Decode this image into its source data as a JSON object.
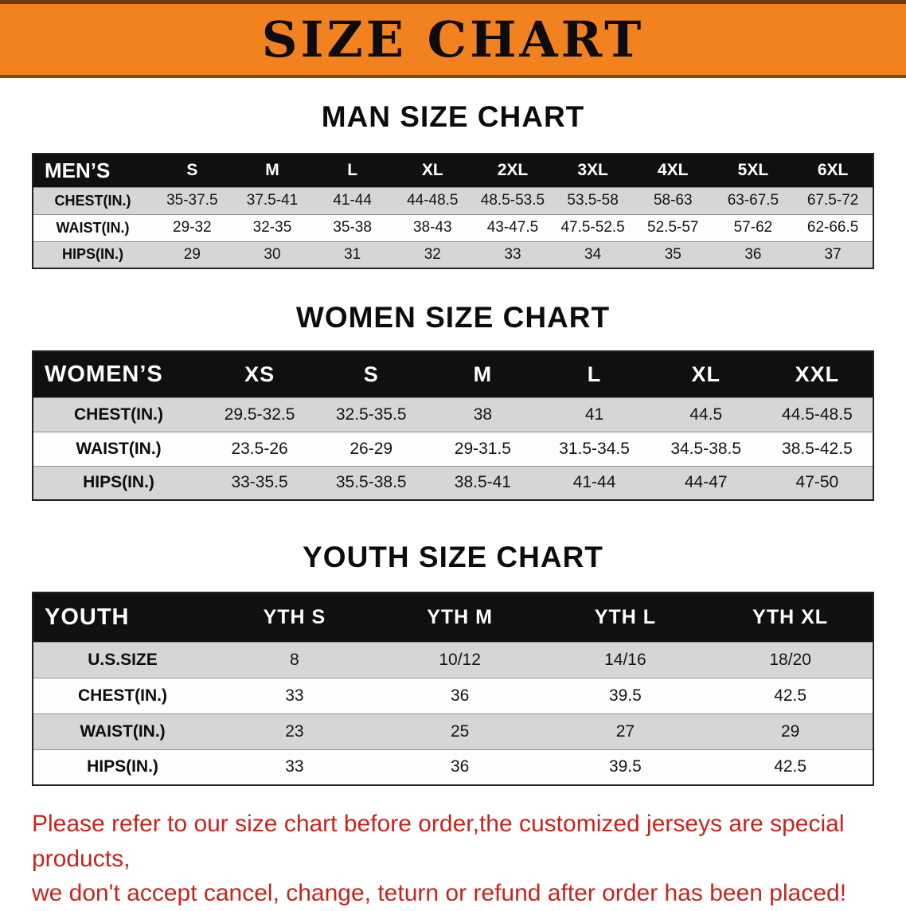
{
  "banner": {
    "title": "SIZE CHART",
    "bg_color": "#f2811f",
    "text_color": "#0c0c0c"
  },
  "sections": [
    {
      "heading": "MAN SIZE CHART",
      "table": {
        "header": [
          "MEN’S",
          "S",
          "M",
          "L",
          "XL",
          "2XL",
          "3XL",
          "4XL",
          "5XL",
          "6XL"
        ],
        "rows": [
          {
            "label": "CHEST(IN.)",
            "values": [
              "35-37.5",
              "37.5-41",
              "41-44",
              "44-48.5",
              "48.5-53.5",
              "53.5-58",
              "58-63",
              "63-67.5",
              "67.5-72"
            ]
          },
          {
            "label": "WAIST(IN.)",
            "values": [
              "29-32",
              "32-35",
              "35-38",
              "38-43",
              "43-47.5",
              "47.5-52.5",
              "52.5-57",
              "57-62",
              "62-66.5"
            ]
          },
          {
            "label": "HIPS(IN.)",
            "values": [
              "29",
              "30",
              "31",
              "32",
              "33",
              "34",
              "35",
              "36",
              "37"
            ]
          }
        ]
      }
    },
    {
      "heading": "WOMEN SIZE CHART",
      "table": {
        "header": [
          "WOMEN’S",
          "XS",
          "S",
          "M",
          "L",
          "XL",
          "XXL"
        ],
        "rows": [
          {
            "label": "CHEST(IN.)",
            "values": [
              "29.5-32.5",
              "32.5-35.5",
              "38",
              "41",
              "44.5",
              "44.5-48.5"
            ]
          },
          {
            "label": "WAIST(IN.)",
            "values": [
              "23.5-26",
              "26-29",
              "29-31.5",
              "31.5-34.5",
              "34.5-38.5",
              "38.5-42.5"
            ]
          },
          {
            "label": "HIPS(IN.)",
            "values": [
              "33-35.5",
              "35.5-38.5",
              "38.5-41",
              "41-44",
              "44-47",
              "47-50"
            ]
          }
        ]
      }
    },
    {
      "heading": "YOUTH SIZE CHART",
      "table": {
        "header": [
          "YOUTH",
          "YTH S",
          "YTH M",
          "YTH L",
          "YTH XL"
        ],
        "rows": [
          {
            "label": "U.S.SIZE",
            "values": [
              "8",
              "10/12",
              "14/16",
              "18/20"
            ]
          },
          {
            "label": "CHEST(IN.)",
            "values": [
              "33",
              "36",
              "39.5",
              "42.5"
            ]
          },
          {
            "label": "WAIST(IN.)",
            "values": [
              "23",
              "25",
              "27",
              "29"
            ]
          },
          {
            "label": "HIPS(IN.)",
            "values": [
              "33",
              "36",
              "39.5",
              "42.5"
            ]
          }
        ]
      }
    }
  ],
  "footer": {
    "line1": "Please refer to our size chart before order,the customized jerseys are special products,",
    "line2": "we don't accept cancel, change, teturn or refund after order has been placed!",
    "text_color": "#c9241c"
  }
}
